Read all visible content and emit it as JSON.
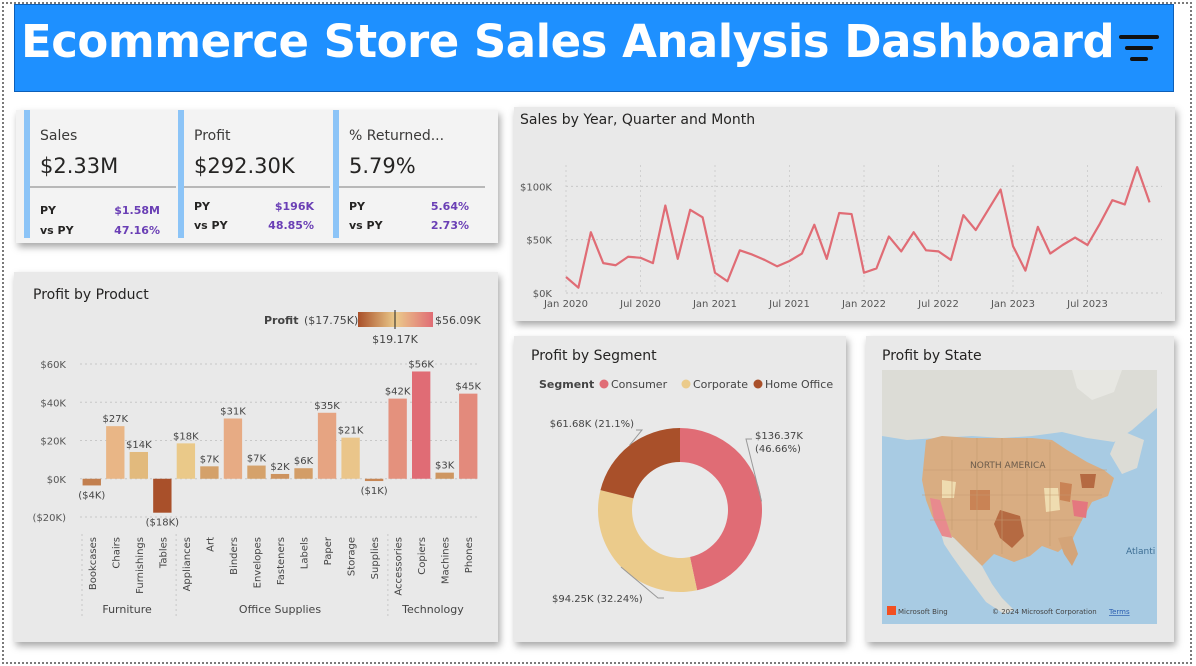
{
  "header": {
    "title": "Ecommerce Store Sales Analysis Dashboard",
    "bg_color": "#1E90FF",
    "menu_icon": "hamburger-filter-icon"
  },
  "kpis": [
    {
      "label": "Sales",
      "value": "$2.33M",
      "py_label": "PY",
      "py_value": "$1.58M",
      "vs_label": "vs PY",
      "vs_value": "47.16%"
    },
    {
      "label": "Profit",
      "value": "$292.30K",
      "py_label": "PY",
      "py_value": "$196K",
      "vs_label": "vs PY",
      "vs_value": "48.85%"
    },
    {
      "label": "% Returned...",
      "value": "5.79%",
      "py_label": "PY",
      "py_value": "5.64%",
      "vs_label": "vs PY",
      "vs_value": "2.73%"
    }
  ],
  "line_panel": {
    "title": "Sales by Year, Quarter and Month"
  },
  "product_panel": {
    "title": "Profit by Product",
    "legend_label": "Profit",
    "legend_min": "($17.75K)",
    "legend_max": "$56.09K",
    "legend_mid": "$19.17K"
  },
  "segment_panel": {
    "title": "Profit by Segment",
    "legend_label": "Segment"
  },
  "state_panel": {
    "title": "Profit by State",
    "map_label": "NORTH AMERICA",
    "ocean_label": "Atlanti",
    "brand": "Microsoft Bing",
    "copyright": "© 2024 Microsoft Corporation",
    "terms": "Terms"
  },
  "colors": {
    "line": "#E06C75",
    "consumer": "#E06C75",
    "corporate": "#EBCB8B",
    "home_office": "#A9502A",
    "kpi_accent": "#8CC4F7",
    "delta": "#6A3FB5"
  },
  "chart_data": [
    {
      "type": "line",
      "title": "Sales by Year, Quarter and Month",
      "x_ticks": [
        "Jan 2020",
        "Jul 2020",
        "Jan 2021",
        "Jul 2021",
        "Jan 2022",
        "Jul 2022",
        "Jan 2023",
        "Jul 2023"
      ],
      "y_ticks": [
        "$0K",
        "$50K",
        "$100K"
      ],
      "ylim": [
        0,
        120
      ],
      "x_range": [
        0,
        48
      ],
      "x": [
        0,
        1,
        2,
        3,
        4,
        5,
        6,
        7,
        8,
        9,
        10,
        11,
        12,
        13,
        14,
        15,
        16,
        17,
        18,
        19,
        20,
        21,
        22,
        23,
        24,
        25,
        26,
        27,
        28,
        29,
        30,
        31,
        32,
        33,
        34,
        35,
        36,
        37,
        38,
        39,
        40,
        41,
        42,
        43,
        44,
        45,
        46,
        47
      ],
      "values": [
        15,
        5,
        57,
        28,
        26,
        34,
        33,
        28,
        82,
        32,
        78,
        71,
        19,
        11,
        40,
        36,
        31,
        25,
        30,
        37,
        64,
        32,
        75,
        74,
        19,
        23,
        53,
        39,
        57,
        40,
        39,
        31,
        73,
        59,
        78,
        97,
        44,
        21,
        62,
        37,
        45,
        52,
        45,
        65,
        87,
        83,
        118,
        85
      ],
      "grid": true
    },
    {
      "type": "bar",
      "title": "Profit by Product",
      "categories": [
        "Bookcases",
        "Chairs",
        "Furnishings",
        "Tables",
        "Appliances",
        "Art",
        "Binders",
        "Envelopes",
        "Fasteners",
        "Labels",
        "Paper",
        "Storage",
        "Supplies",
        "Accessories",
        "Copiers",
        "Machines",
        "Phones"
      ],
      "groups": [
        {
          "name": "Furniture",
          "from": 0,
          "to": 3
        },
        {
          "name": "Office Supplies",
          "from": 4,
          "to": 12
        },
        {
          "name": "Technology",
          "from": 13,
          "to": 16
        }
      ],
      "values": [
        -3.5,
        27.5,
        14,
        -17.75,
        18.5,
        6.5,
        31.5,
        6.9,
        2.5,
        5.5,
        34.5,
        21.5,
        -1.2,
        41.9,
        56.09,
        3.2,
        44.5
      ],
      "labels": [
        "($4K)",
        "$27K",
        "$14K",
        "($18K)",
        "$18K",
        "$7K",
        "$31K",
        "$7K",
        "$2K",
        "$6K",
        "$35K",
        "$21K",
        "($1K)",
        "$42K",
        "$56K",
        "$3K",
        "$45K"
      ],
      "y_ticks": [
        "($20K)",
        "$0K",
        "$20K",
        "$40K",
        "$60K"
      ],
      "ylim": [
        -20,
        60
      ]
    },
    {
      "type": "pie",
      "title": "Profit by Segment",
      "categories": [
        "Consumer",
        "Corporate",
        "Home Office"
      ],
      "values": [
        136.37,
        94.25,
        61.68
      ],
      "percents": [
        46.66,
        32.24,
        21.1
      ],
      "labels": [
        "$136.37K (46.66%)",
        "$94.25K (32.24%)",
        "$61.68K (21.1%)"
      ],
      "donut": true,
      "legend": "top"
    }
  ]
}
